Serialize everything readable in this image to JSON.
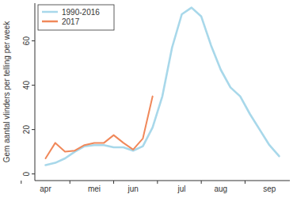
{
  "chart_data": {
    "type": "line",
    "y_label": "Gem aantal vlinders per telling per week",
    "categories": [
      "apr",
      null,
      null,
      null,
      null,
      "mei",
      null,
      null,
      null,
      "jun",
      null,
      null,
      null,
      null,
      "jul",
      null,
      null,
      null,
      "aug",
      null,
      null,
      null,
      null,
      "sep",
      null
    ],
    "series": [
      {
        "name": "1990-2016",
        "color": "#a8d8ea",
        "values": [
          4,
          5,
          7,
          10,
          12.5,
          13,
          13,
          12,
          12,
          10.5,
          12.5,
          21,
          35,
          57,
          72,
          75,
          71,
          58,
          47,
          39,
          35,
          27,
          20,
          13,
          8
        ]
      },
      {
        "name": "2017",
        "color": "#f0885a",
        "values": [
          7,
          14,
          10,
          10.5,
          13,
          14,
          14,
          17.5,
          14,
          11,
          16,
          35,
          null,
          null,
          null,
          null,
          null,
          null,
          null,
          null,
          null,
          null,
          null,
          null,
          null
        ]
      }
    ],
    "ylim": [
      -3,
      77
    ],
    "yticks": [
      0,
      20,
      40,
      60
    ],
    "legend": "top-left",
    "grid": false
  }
}
